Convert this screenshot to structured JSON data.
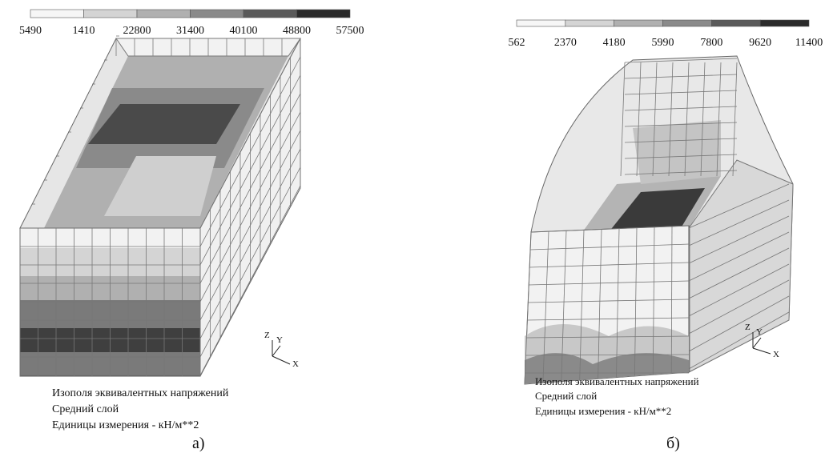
{
  "panels": [
    {
      "legend": [
        "5490",
        "1410",
        "22800",
        "31400",
        "40100",
        "48800",
        "57500"
      ],
      "caption": [
        "Изополя эквивалентных напряжений",
        "Средний слой",
        "Единицы измерения - кН/м**2"
      ],
      "axes": [
        "Z",
        "Y",
        "X"
      ],
      "label": "а)"
    },
    {
      "legend": [
        "562",
        "2370",
        "4180",
        "5990",
        "7800",
        "9620",
        "11400"
      ],
      "caption": [
        "Изополя эквивалентных напряжений",
        "Средний слой",
        "Единицы измерения - кН/м**2"
      ],
      "axes": [
        "Z",
        "Y",
        "X"
      ],
      "label": "б)"
    }
  ]
}
